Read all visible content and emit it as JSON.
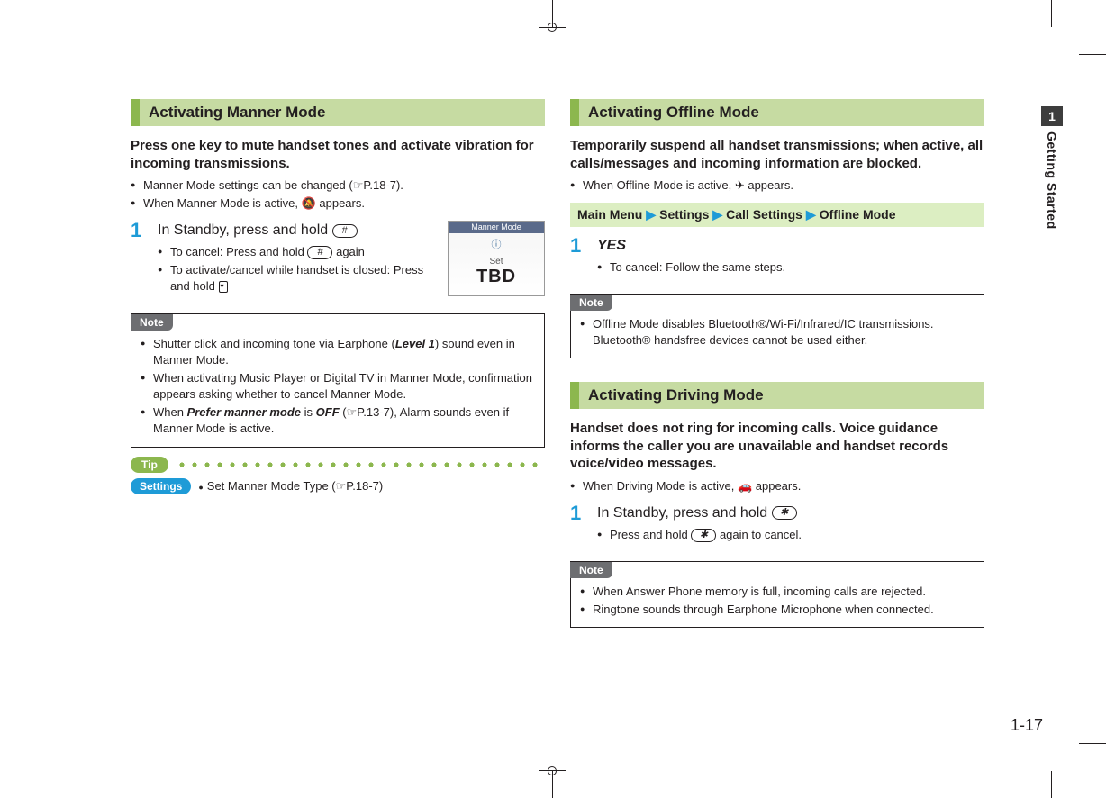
{
  "page_number": "1-17",
  "side_tab": {
    "chapter": "1",
    "label": "Getting Started"
  },
  "colors": {
    "accent_green_light": "#c6dba2",
    "accent_green_dark": "#8cb74e",
    "accent_blue": "#1e9bd7",
    "note_gray": "#6d6e71",
    "text": "#231f20",
    "breadcrumb_bg": "#dceec2"
  },
  "left": {
    "heading": "Activating Manner Mode",
    "intro": "Press one key to mute handset tones and activate vibration for incoming transmissions.",
    "bullets": [
      "Manner Mode settings can be changed (☞P.18-7).",
      "When Manner Mode is active, 🔕 appears."
    ],
    "step": {
      "num": "1",
      "title_pre": "In Standby, press and hold ",
      "title_key": "#",
      "sub": [
        {
          "pre": "To cancel: Press and hold ",
          "key": "#",
          "post": " again"
        },
        {
          "pre": "To activate/cancel while handset is closed: Press and hold ",
          "key_small": true
        }
      ],
      "screenshot": {
        "bar": "Manner Mode",
        "set": "Set",
        "tbd": "TBD"
      }
    },
    "note": {
      "label": "Note",
      "items": [
        {
          "parts": [
            "Shutter click and incoming tone via Earphone (",
            {
              "ib": "Level 1"
            },
            ") sound even in Manner Mode."
          ]
        },
        {
          "parts": [
            "When activating Music Player or Digital TV in Manner Mode, confirmation appears asking whether to cancel Manner Mode."
          ]
        },
        {
          "parts": [
            "When ",
            {
              "ib": "Prefer manner mode"
            },
            " is ",
            {
              "ib": "OFF"
            },
            " (☞P.13-7), Alarm sounds even if Manner Mode is active."
          ]
        }
      ]
    },
    "tip_label": "Tip",
    "settings": {
      "label": "Settings",
      "text": "Set Manner Mode Type (☞P.18-7)"
    }
  },
  "right": {
    "offline": {
      "heading": "Activating Offline Mode",
      "intro": "Temporarily suspend all handset transmissions; when active, all calls/messages and incoming information are blocked.",
      "bullets": [
        "When Offline Mode is active, ✈ appears."
      ],
      "breadcrumb": [
        "Main Menu",
        "Settings",
        "Call Settings",
        "Offline Mode"
      ],
      "step": {
        "num": "1",
        "title": "YES",
        "sub": [
          "To cancel: Follow the same steps."
        ]
      },
      "note": {
        "label": "Note",
        "items": [
          "Offline Mode disables Bluetooth®/Wi-Fi/Infrared/IC transmissions. Bluetooth® handsfree devices cannot be used either."
        ]
      }
    },
    "driving": {
      "heading": "Activating Driving Mode",
      "intro": "Handset does not ring for incoming calls. Voice guidance informs the caller you are unavailable and handset records voice/video messages.",
      "bullets": [
        "When Driving Mode is active, 🚗 appears."
      ],
      "step": {
        "num": "1",
        "title_pre": "In Standby, press and hold ",
        "title_key": "✱",
        "sub": [
          {
            "pre": "Press and hold ",
            "key": "✱",
            "post": " again to cancel."
          }
        ]
      },
      "note": {
        "label": "Note",
        "items": [
          "When Answer Phone memory is full, incoming calls are rejected.",
          "Ringtone sounds through Earphone Microphone when connected."
        ]
      }
    }
  }
}
